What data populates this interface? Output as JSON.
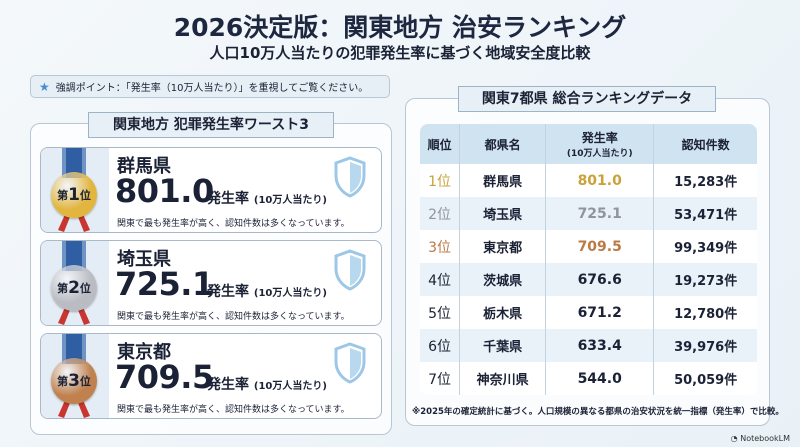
{
  "header": {
    "title": "2026決定版：関東地方 治安ランキング",
    "subtitle": "人口10万人当たりの犯罪発生率に基づく地域安全度比較"
  },
  "callout": {
    "icon": "star-icon",
    "text": "強調ポイント：「発生率（10万人当たり）」を重視してご覧ください。"
  },
  "worst": {
    "title": "関東地方 犯罪発生率ワースト3",
    "cards": [
      {
        "rank_prefix": "第",
        "rank": "1",
        "rank_suffix": "位",
        "prefecture": "群馬県",
        "rate": "801.0",
        "rate_label": "発生率",
        "rate_unit": "(10万人当たり)",
        "desc": "関東で最も発生率が高く、認知件数は多くなっています。",
        "medal_color": "#e2b53f"
      },
      {
        "rank_prefix": "第",
        "rank": "2",
        "rank_suffix": "位",
        "prefecture": "埼玉県",
        "rate": "725.1",
        "rate_label": "発生率",
        "rate_unit": "(10万人当たり)",
        "desc": "関東で最も発生率が高く、認知件数は多くなっています。",
        "medal_color": "#b9bcc2"
      },
      {
        "rank_prefix": "第",
        "rank": "3",
        "rank_suffix": "位",
        "prefecture": "東京都",
        "rate": "709.5",
        "rate_label": "発生率",
        "rate_unit": "(10万人当たり)",
        "desc": "関東で最も発生率が高く、認知件数は多くなっています。",
        "medal_color": "#c0814f"
      }
    ]
  },
  "ranking": {
    "title": "関東7都県 総合ランキングデータ",
    "columns": {
      "rank": "順位",
      "pref": "都県名",
      "rate": "発生率",
      "rate_sub": "(10万人当たり)",
      "count": "認知件数"
    },
    "rows": [
      {
        "rank": "1位",
        "pref": "群馬県",
        "rate": "801.0",
        "count": "15,283件",
        "color": "#c9a23a"
      },
      {
        "rank": "2位",
        "pref": "埼玉県",
        "rate": "725.1",
        "count": "53,471件",
        "color": "#8f959c"
      },
      {
        "rank": "3位",
        "pref": "東京都",
        "rate": "709.5",
        "count": "99,349件",
        "color": "#b97a45"
      },
      {
        "rank": "4位",
        "pref": "茨城県",
        "rate": "676.6",
        "count": "19,273件",
        "color": "#1b2235"
      },
      {
        "rank": "5位",
        "pref": "栃木県",
        "rate": "671.2",
        "count": "12,780件",
        "color": "#1b2235"
      },
      {
        "rank": "6位",
        "pref": "千葉県",
        "rate": "633.4",
        "count": "39,976件",
        "color": "#1b2235"
      },
      {
        "rank": "7位",
        "pref": "神奈川県",
        "rate": "544.0",
        "count": "50,059件",
        "color": "#1b2235"
      }
    ],
    "footnote": "※2025年の確定統計に基づく。人口規模の異なる都県の治安状況を統一指標（発生率）で比較。"
  },
  "brand": "NotebookLM"
}
